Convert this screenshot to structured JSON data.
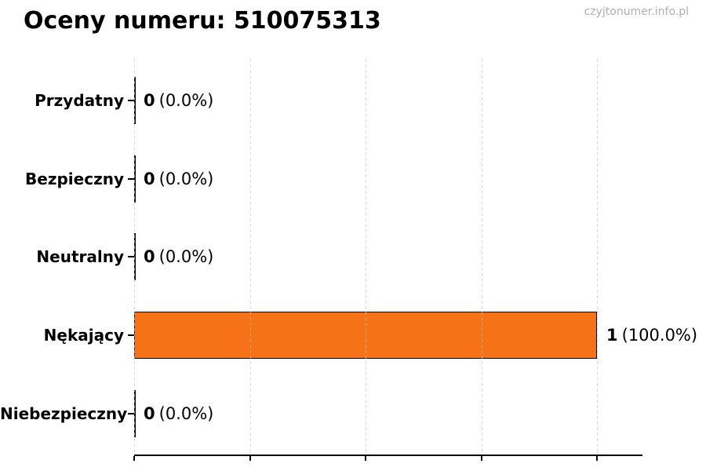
{
  "header": {
    "title": "Oceny numeru: 510075313",
    "watermark": "czyjtonumer.info.pl"
  },
  "chart_data": {
    "type": "bar",
    "orientation": "horizontal",
    "title": "Oceny numeru: 510075313",
    "categories": [
      "Przydatny",
      "Bezpieczny",
      "Neutralny",
      "Nękający",
      "Niebezpieczny"
    ],
    "values": [
      0,
      0,
      0,
      1,
      0
    ],
    "value_labels": [
      "0",
      "0",
      "0",
      "1",
      "0"
    ],
    "pct_labels": [
      "(0.0%)",
      "(0.0%)",
      "(0.0%)",
      "(100.0%)",
      "(0.0%)"
    ],
    "xlim": [
      0,
      1.095
    ],
    "x_ticks": [
      0,
      0.25,
      0.5,
      0.75,
      1.0
    ],
    "x_tick_labels_visible": false,
    "grid": "vertical-dashed",
    "legend": "none",
    "xlabel": "",
    "ylabel": "",
    "colors": {
      "bar_fill": "#f57316",
      "bar_edge": "#000000",
      "gridline": "#c8c8c8",
      "axis": "#000000",
      "text": "#000000",
      "watermark": "#b0b0b0",
      "background": "#ffffff"
    }
  }
}
